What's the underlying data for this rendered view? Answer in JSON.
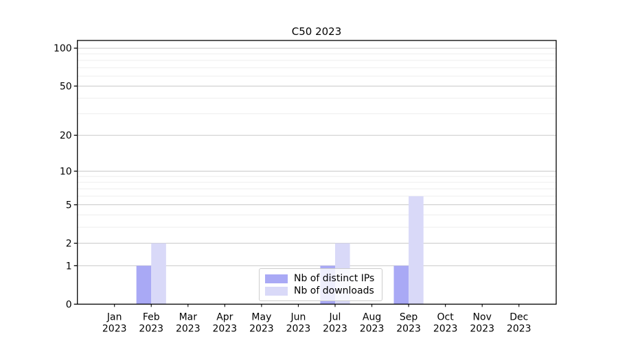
{
  "chart_data": {
    "type": "bar",
    "title": "C50 2023",
    "categories": [
      "Jan 2023",
      "Feb 2023",
      "Mar 2023",
      "Apr 2023",
      "May 2023",
      "Jun 2023",
      "Jul 2023",
      "Aug 2023",
      "Sep 2023",
      "Oct 2023",
      "Nov 2023",
      "Dec 2023"
    ],
    "series": [
      {
        "name": "Nb of distinct IPs",
        "color": "#a9a9f5",
        "values": [
          0,
          1,
          0,
          0,
          0,
          0,
          1,
          0,
          1,
          0,
          0,
          0
        ]
      },
      {
        "name": "Nb of downloads",
        "color": "#d9d9f8",
        "values": [
          0,
          2,
          0,
          0,
          0,
          0,
          2,
          0,
          6,
          0,
          0,
          0
        ]
      }
    ],
    "yscale": "log1p",
    "yticks_major": [
      0,
      1,
      2,
      5,
      10,
      20,
      50,
      100
    ],
    "yticks_minor": [
      3,
      4,
      6,
      7,
      8,
      9,
      30,
      40,
      60,
      70,
      80,
      90
    ],
    "ylim": [
      0,
      115
    ],
    "xlabel": "",
    "ylabel": "",
    "grid": true,
    "legend_position": "lower center",
    "colors": {
      "major_grid": "#c9c9c9",
      "minor_grid": "#ededed",
      "axis": "#000000",
      "tick_text": "#000000",
      "background": "#ffffff"
    }
  }
}
